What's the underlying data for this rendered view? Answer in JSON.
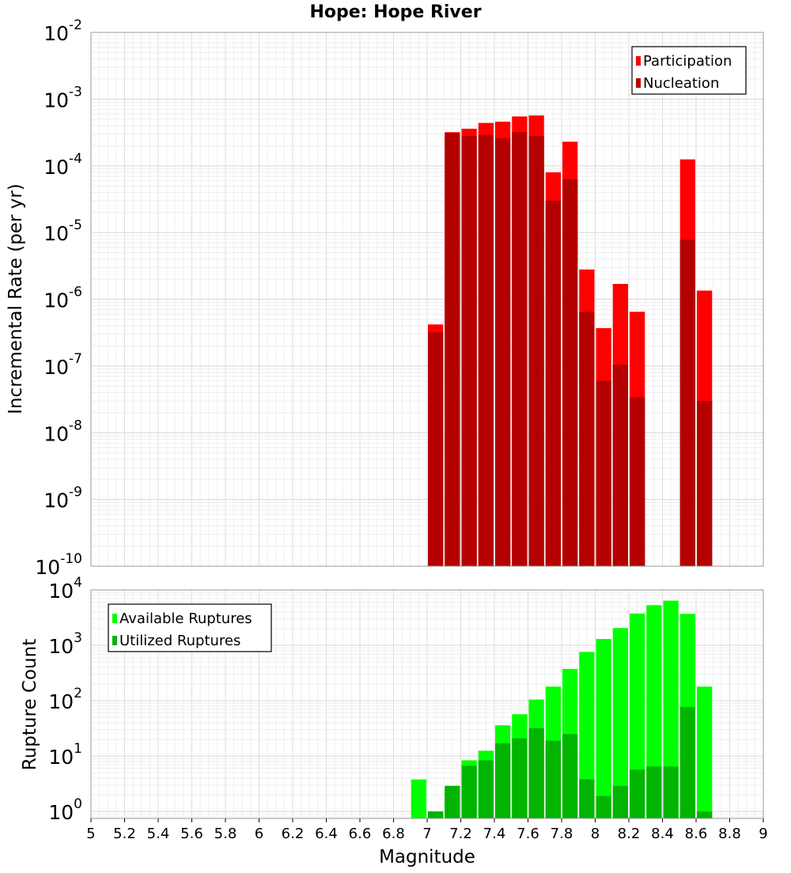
{
  "chart_data": [
    {
      "type": "bar",
      "title": "Hope: Hope River",
      "ylabel": "Incremental Rate (per yr)",
      "yscale": "log",
      "ylim": [
        1e-10,
        0.01
      ],
      "xlim": [
        5,
        9
      ],
      "grid": true,
      "legend_position": "top-right",
      "ytick_base": "10",
      "ytick_exponents": [
        "-10",
        "-9",
        "-8",
        "-7",
        "-6",
        "-5",
        "-4",
        "-3",
        "-2"
      ],
      "x": [
        7.0,
        7.1,
        7.2,
        7.3,
        7.4,
        7.5,
        7.6,
        7.7,
        7.8,
        7.9,
        8.0,
        8.1,
        8.2,
        8.3,
        8.4,
        8.5,
        8.6
      ],
      "series": [
        {
          "name": "Participation",
          "color": "#ff0000",
          "values": [
            4.2e-07,
            0.00032,
            0.00036,
            0.00044,
            0.00046,
            0.00055,
            0.00057,
            8e-05,
            0.00023,
            2.8e-06,
            3.7e-07,
            1.7e-06,
            6.5e-07,
            null,
            null,
            0.000125,
            1.35e-06
          ]
        },
        {
          "name": "Nucleation",
          "color": "#b40000",
          "values": [
            3.2e-07,
            0.00031,
            0.00028,
            0.00029,
            0.00026,
            0.00032,
            0.00028,
            3e-05,
            6.3e-05,
            6.5e-07,
            6e-08,
            1.05e-07,
            3.4e-08,
            null,
            null,
            7.8e-06,
            3e-08
          ]
        }
      ]
    },
    {
      "type": "bar",
      "xlabel": "Magnitude",
      "ylabel": "Rupture Count",
      "yscale": "log",
      "ylim": [
        0.75,
        10000
      ],
      "xlim": [
        5,
        9
      ],
      "grid": true,
      "legend_position": "top-left",
      "xticks": [
        "5",
        "5.2",
        "5.4",
        "5.6",
        "5.8",
        "6",
        "6.2",
        "6.4",
        "6.6",
        "6.8",
        "7",
        "7.2",
        "7.4",
        "7.6",
        "7.8",
        "8",
        "8.2",
        "8.4",
        "8.6",
        "8.8",
        "9"
      ],
      "ytick_base": "10",
      "ytick_exponents": [
        "0",
        "1",
        "2",
        "3",
        "4"
      ],
      "x": [
        6.9,
        7.0,
        7.1,
        7.2,
        7.3,
        7.4,
        7.5,
        7.6,
        7.7,
        7.8,
        7.9,
        8.0,
        8.1,
        8.2,
        8.3,
        8.4,
        8.5,
        8.6
      ],
      "series": [
        {
          "name": "Available Ruptures",
          "color": "#00ff00",
          "values": [
            3.8,
            1,
            2.9,
            8.4,
            12.5,
            36,
            57,
            105,
            180,
            375,
            760,
            1300,
            2050,
            3750,
            5300,
            6400,
            3700,
            180
          ]
        },
        {
          "name": "Utilized Ruptures",
          "color": "#00b400",
          "values": [
            null,
            1,
            2.9,
            6.7,
            8.4,
            17,
            21,
            32,
            19,
            25,
            3.8,
            1.9,
            2.9,
            5.7,
            6.5,
            6.5,
            77,
            1
          ]
        }
      ]
    }
  ]
}
